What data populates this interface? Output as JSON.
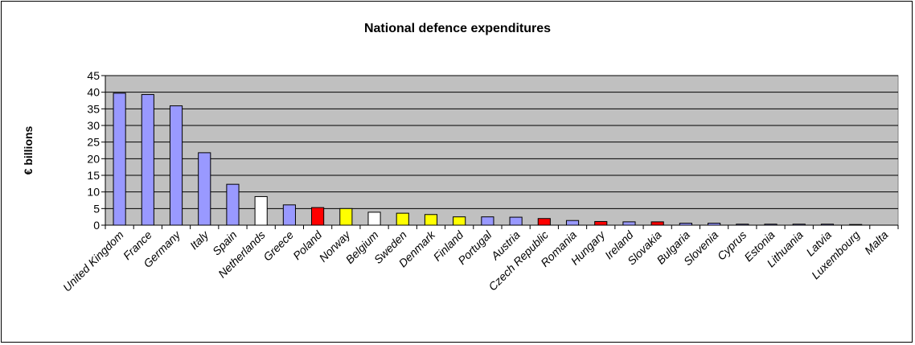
{
  "chart_data": {
    "type": "bar",
    "title": "National defence expenditures",
    "xlabel": "",
    "ylabel": "€ billions",
    "ylim": [
      0,
      45
    ],
    "yticks": [
      0,
      5,
      10,
      15,
      20,
      25,
      30,
      35,
      40,
      45
    ],
    "grid": true,
    "plot_background": "#c0c0c0",
    "categories": [
      "United Kingdom",
      "France",
      "Germany",
      "Italy",
      "Spain",
      "Netherlands",
      "Greece",
      "Poland",
      "Norway",
      "Belgium",
      "Sweden",
      "Denmark",
      "Finland",
      "Portugal",
      "Austria",
      "Czech Republic",
      "Romania",
      "Hungary",
      "Ireland",
      "Slovakia",
      "Bulgaria",
      "Slovenia",
      "Cyprus",
      "Estonia",
      "Lithuania",
      "Latvia",
      "Luxembourg",
      "Malta"
    ],
    "values": [
      39.7,
      39.3,
      35.9,
      21.8,
      12.3,
      8.6,
      6.1,
      5.3,
      5.0,
      3.9,
      3.6,
      3.2,
      2.5,
      2.5,
      2.4,
      2.0,
      1.4,
      1.1,
      1.0,
      1.0,
      0.6,
      0.6,
      0.3,
      0.3,
      0.3,
      0.3,
      0.2,
      0.0
    ],
    "colors": [
      "#9999ff",
      "#9999ff",
      "#9999ff",
      "#9999ff",
      "#9999ff",
      "#ffffff",
      "#9999ff",
      "#ff0000",
      "#ffff00",
      "#ffffff",
      "#ffff00",
      "#ffff00",
      "#ffff00",
      "#9999ff",
      "#9999ff",
      "#ff0000",
      "#9999ff",
      "#ff0000",
      "#9999ff",
      "#ff0000",
      "#9999ff",
      "#9999ff",
      "#9999ff",
      "#9999ff",
      "#9999ff",
      "#9999ff",
      "#9999ff",
      "#9999ff"
    ]
  }
}
